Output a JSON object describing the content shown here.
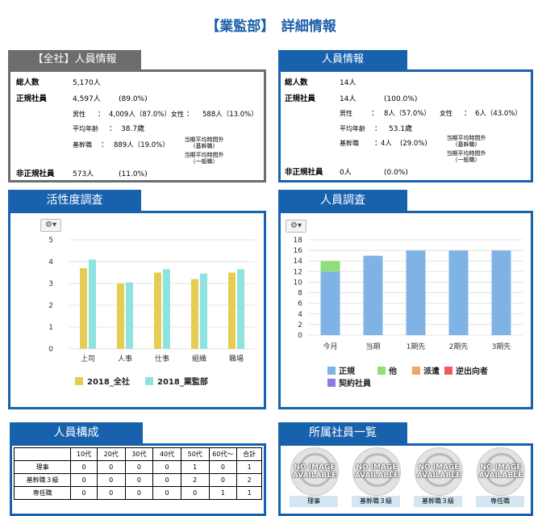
{
  "page": {
    "title": "【業監部】　詳細情報"
  },
  "company_panel": {
    "tab": "【全社】人員情報",
    "total_label": "総人数",
    "total_value": "5,170人",
    "regular_label": "正規社員",
    "regular_value": "4,597人",
    "regular_pct": "(89.0%)",
    "male_label": "男性",
    "colon": "：",
    "male_value": "4,009人（87.0%）",
    "female_label": "女性",
    "female_value": "588人（13.0%）",
    "age_label": "平均年齢",
    "age_value": "38.7歳",
    "core_label": "基幹職",
    "core_value": "889人（19.0%）",
    "overtime_1": "当期平均時間外",
    "overtime_1_sub": "(基幹職)",
    "overtime_2": "当期平均時間外",
    "overtime_2_sub": "（一般職）",
    "nonregular_label": "非正規社員",
    "nonregular_value": "573人",
    "nonregular_pct": "(11.0%)"
  },
  "dept_panel": {
    "tab": "人員情報",
    "total_label": "総人数",
    "total_value": "14人",
    "regular_label": "正規社員",
    "regular_value": "14人",
    "regular_pct": "(100.0%)",
    "male_label": "男性",
    "colon": "：",
    "male_value": "8人（57.0%）",
    "female_label": "女性",
    "female_value": "6人（43.0%）",
    "age_label": "平均年齢",
    "age_value": "53.1歳",
    "core_label": "基幹職",
    "core_value": "4人",
    "core_pct": "(29.0%)",
    "overtime_1": "当期平均時間外",
    "overtime_1_sub": "(基幹職)",
    "overtime_2": "当期平均時間外",
    "overtime_2_sub": "（一般職）",
    "nonregular_label": "非正規社員",
    "nonregular_value": "0人",
    "nonregular_pct": "(0.0%)"
  },
  "activity_panel": {
    "tab": "活性度調査",
    "gear": "⚙▾"
  },
  "survey_panel": {
    "tab": "人員調査",
    "gear": "⚙▾"
  },
  "composition_panel": {
    "tab": "人員構成",
    "headers": [
      "",
      "10代",
      "20代",
      "30代",
      "40代",
      "50代",
      "60代～",
      "合計"
    ],
    "rows": [
      [
        "理事",
        "0",
        "0",
        "0",
        "0",
        "1",
        "0",
        "1"
      ],
      [
        "基幹職３級",
        "0",
        "0",
        "0",
        "0",
        "2",
        "0",
        "2"
      ],
      [
        "専任職",
        "0",
        "0",
        "0",
        "0",
        "0",
        "1",
        "1"
      ]
    ]
  },
  "members_panel": {
    "tab": "所属社員一覧",
    "no_image_line1": "NO IMAGE",
    "no_image_line2": "AVAILABLE",
    "members": [
      "理事",
      "基幹職３級",
      "基幹職３級",
      "専任職"
    ]
  },
  "colors": {
    "brand_blue": "#1862ad",
    "gray_tab": "#6d6d6d",
    "bar_yellow": "#e4cd52",
    "bar_cyan": "#8ee3df",
    "bar_blue": "#7fb3e6",
    "bar_green": "#8fe07c",
    "legend_orange": "#f4a460",
    "legend_red": "#f25a5a",
    "legend_purple": "#8a7be0"
  },
  "chart_data": [
    {
      "type": "bar",
      "categories": [
        "上司",
        "人事",
        "仕事",
        "組織",
        "職場"
      ],
      "series": [
        {
          "name": "2018_全社",
          "values": [
            3.7,
            3.0,
            3.5,
            3.2,
            3.5
          ],
          "color": "#e4cd52"
        },
        {
          "name": "2018_業監部",
          "values": [
            4.1,
            3.05,
            3.65,
            3.45,
            3.65
          ],
          "color": "#8ee3df"
        }
      ],
      "ylim": [
        0,
        5
      ],
      "yticks": [
        0,
        1,
        2,
        3,
        4,
        5
      ],
      "grid": true,
      "legend": "bottom"
    },
    {
      "type": "bar",
      "stacked": true,
      "categories": [
        "今月",
        "当期",
        "1期先",
        "2期先",
        "3期先"
      ],
      "series": [
        {
          "name": "正規",
          "values": [
            12,
            15,
            16,
            16,
            16
          ],
          "color": "#7fb3e6"
        },
        {
          "name": "他",
          "values": [
            2,
            0,
            0,
            0,
            0
          ],
          "color": "#8fe07c"
        },
        {
          "name": "派遣",
          "values": [
            0,
            0,
            0,
            0,
            0
          ],
          "color": "#f4a460"
        },
        {
          "name": "逆出向者",
          "values": [
            0,
            0,
            0,
            0,
            0
          ],
          "color": "#f25a5a"
        },
        {
          "name": "契約社員",
          "values": [
            0,
            0,
            0,
            0,
            0
          ],
          "color": "#8a7be0"
        }
      ],
      "ylim": [
        0,
        18
      ],
      "yticks": [
        0,
        2,
        4,
        6,
        8,
        10,
        12,
        14,
        16,
        18
      ],
      "grid": true,
      "legend": "bottom"
    }
  ]
}
